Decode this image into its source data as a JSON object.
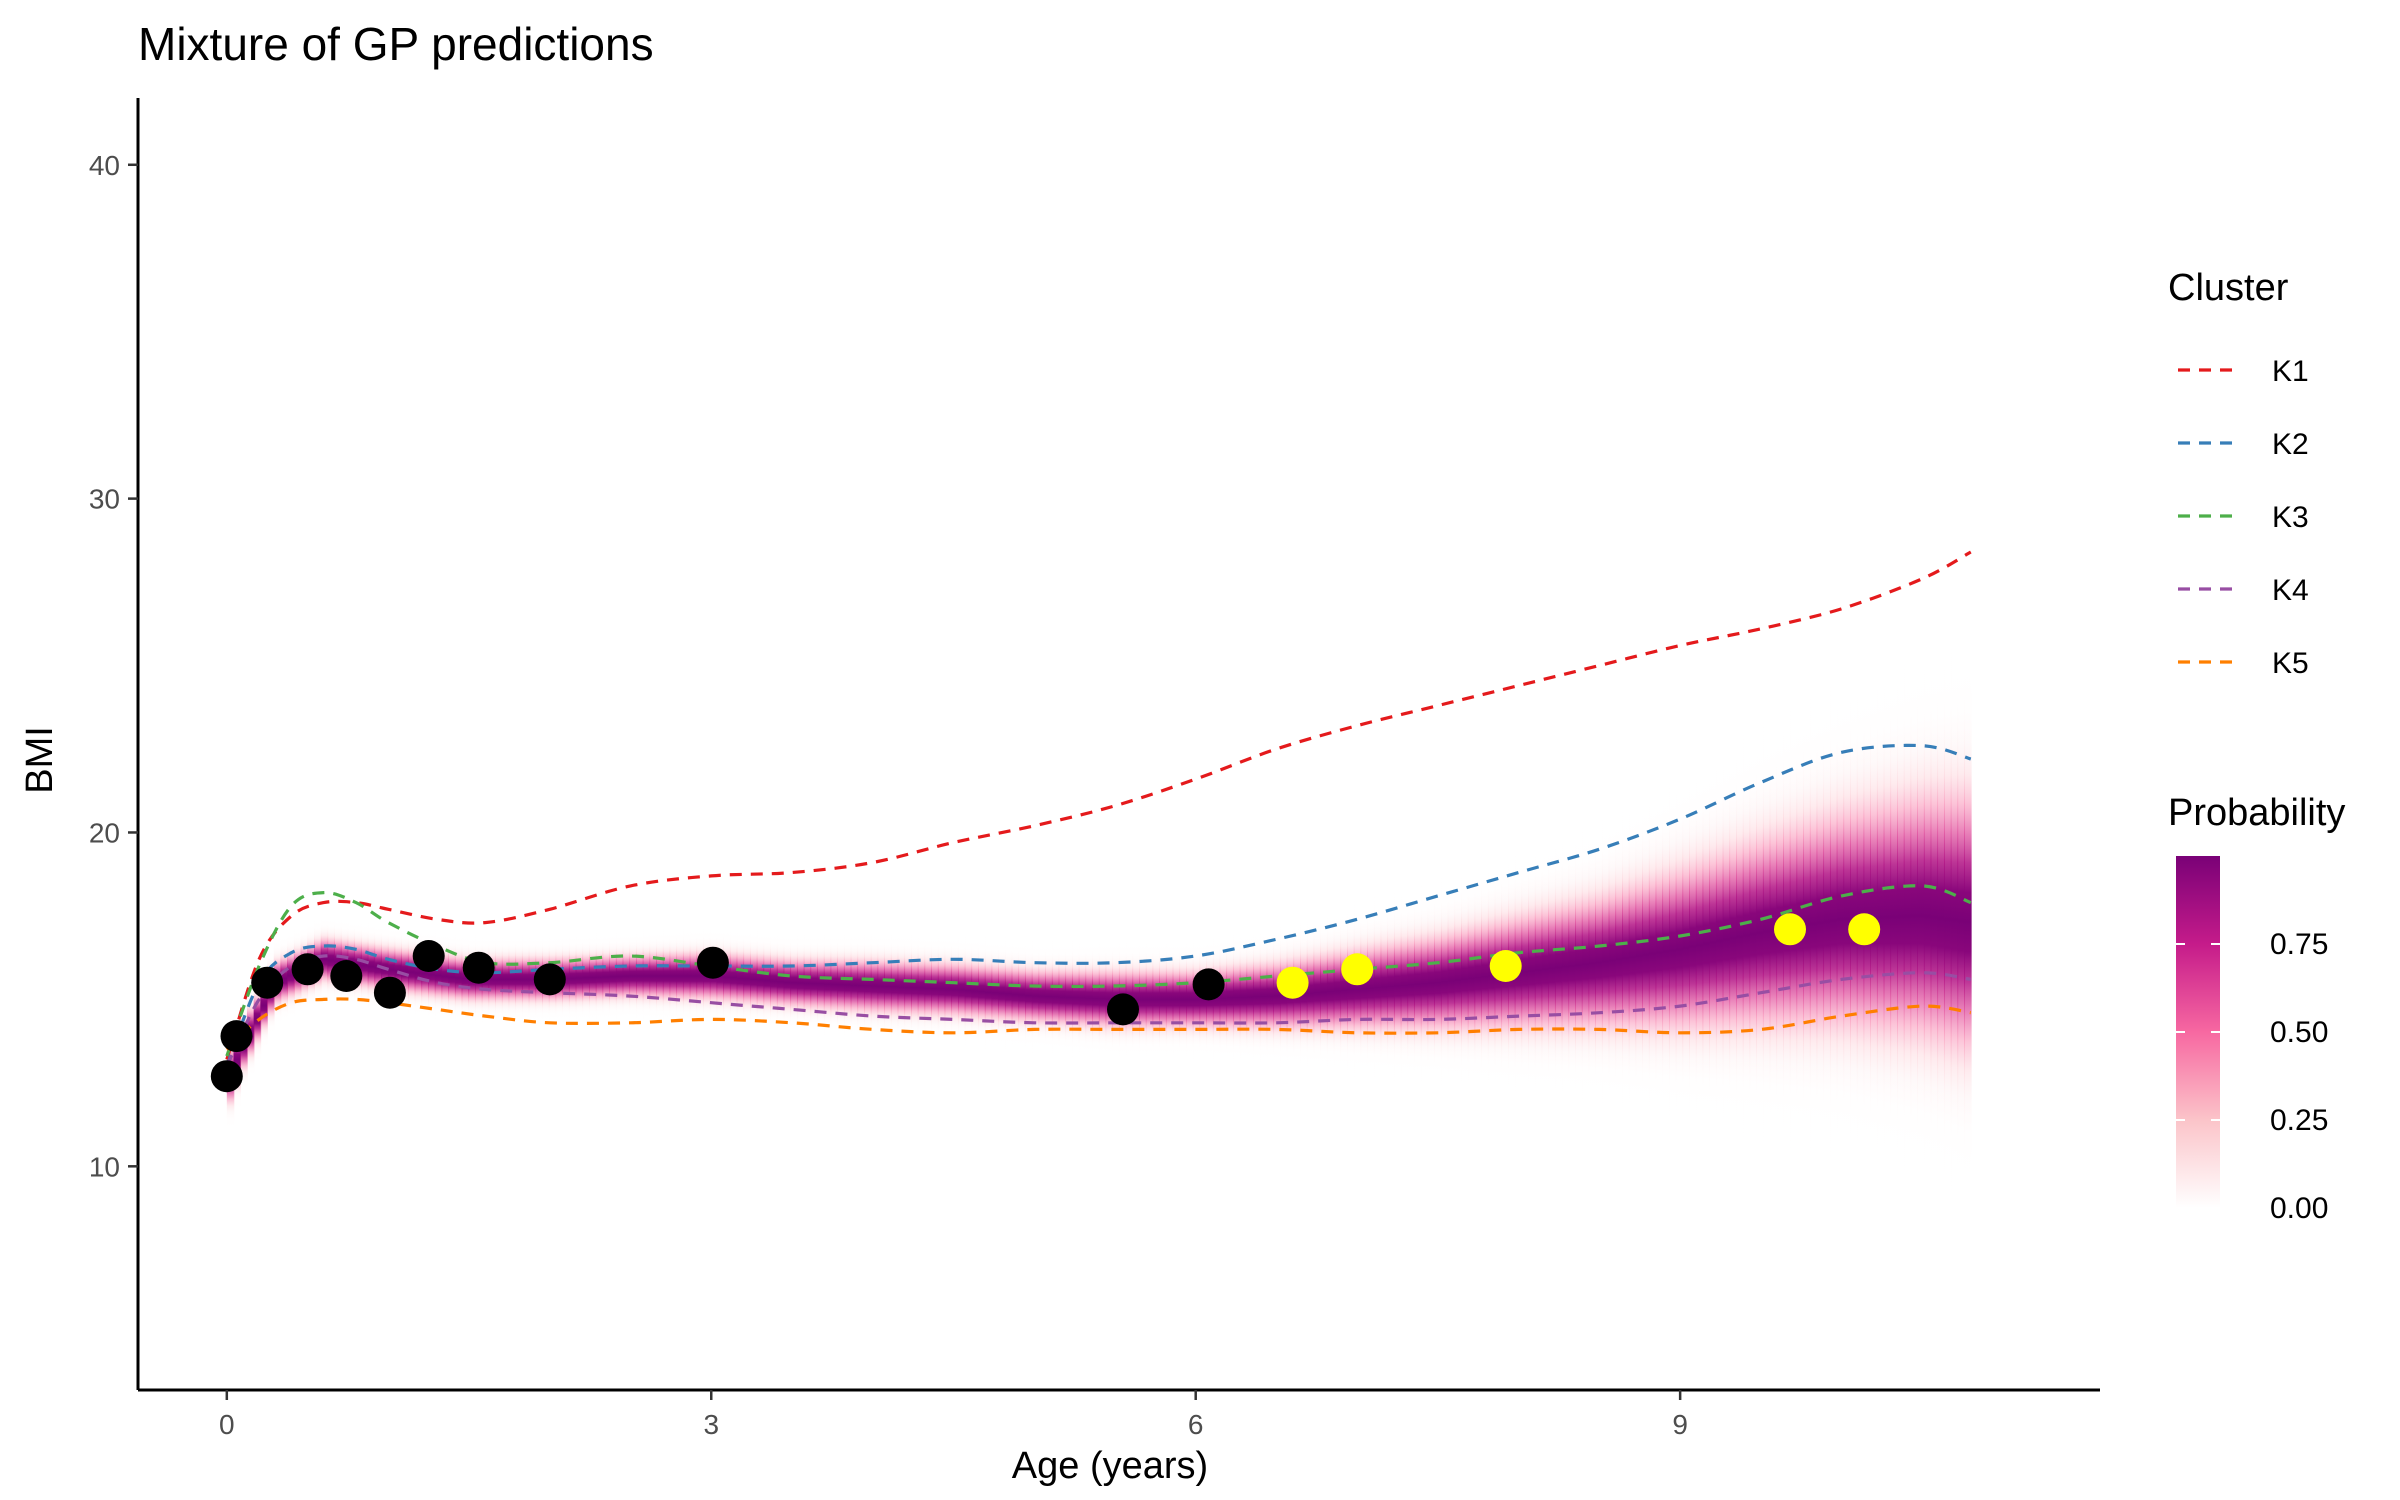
{
  "chart_data": {
    "type": "line",
    "title": "Mixture of GP predictions",
    "xlabel": "Age (years)",
    "ylabel": "BMI",
    "xlim": [
      -0.55,
      11.6
    ],
    "ylim": [
      3.3,
      42
    ],
    "x_ticks": [
      0,
      3,
      6,
      9
    ],
    "y_ticks": [
      10,
      20,
      30,
      40
    ],
    "grid": false,
    "legend_cluster": {
      "title": "Cluster",
      "position": "right",
      "line_style": "dashed"
    },
    "legend_probability": {
      "title": "Probability",
      "ticks": [
        "0.00",
        "0.25",
        "0.50",
        "0.75"
      ],
      "tick_values": [
        0,
        0.25,
        0.5,
        0.75
      ],
      "max": 1.0,
      "colors": [
        "#ffffff",
        "#fbc4c9",
        "#f768a1",
        "#c51b8a",
        "#7a0177"
      ]
    },
    "series": [
      {
        "name": "K1",
        "color": "#e41a1c",
        "x": [
          0,
          0.2,
          0.4,
          0.6,
          0.8,
          1.0,
          1.3,
          1.6,
          2.0,
          2.5,
          3.0,
          3.5,
          4.0,
          4.5,
          5.0,
          5.5,
          6.0,
          6.5,
          7.0,
          7.5,
          8.0,
          8.5,
          9.0,
          9.5,
          10.0,
          10.5,
          10.8
        ],
        "y": [
          13.2,
          16.2,
          17.5,
          17.9,
          17.9,
          17.7,
          17.4,
          17.3,
          17.7,
          18.4,
          18.7,
          18.8,
          19.1,
          19.7,
          20.2,
          20.8,
          21.6,
          22.5,
          23.2,
          23.8,
          24.4,
          25.0,
          25.6,
          26.1,
          26.7,
          27.6,
          28.4
        ]
      },
      {
        "name": "K2",
        "color": "#377eb8",
        "x": [
          0,
          0.2,
          0.4,
          0.6,
          0.8,
          1.0,
          1.3,
          1.6,
          2.0,
          2.5,
          3.0,
          3.5,
          4.0,
          4.5,
          5.0,
          5.5,
          6.0,
          6.5,
          7.0,
          7.5,
          8.0,
          8.5,
          9.0,
          9.5,
          10.0,
          10.5,
          10.8
        ],
        "y": [
          13.0,
          15.5,
          16.4,
          16.6,
          16.5,
          16.2,
          15.9,
          15.8,
          15.9,
          16.0,
          16.0,
          16.0,
          16.1,
          16.2,
          16.1,
          16.1,
          16.3,
          16.8,
          17.4,
          18.1,
          18.8,
          19.5,
          20.4,
          21.5,
          22.4,
          22.6,
          22.2
        ]
      },
      {
        "name": "K3",
        "color": "#4daf4a",
        "x": [
          0,
          0.2,
          0.4,
          0.6,
          0.8,
          1.0,
          1.3,
          1.6,
          2.0,
          2.5,
          3.0,
          3.5,
          4.0,
          4.5,
          5.0,
          5.5,
          6.0,
          6.5,
          7.0,
          7.5,
          8.0,
          8.5,
          9.0,
          9.5,
          10.0,
          10.5,
          10.8
        ],
        "y": [
          13.3,
          16.0,
          17.8,
          18.2,
          17.9,
          17.3,
          16.6,
          16.1,
          16.1,
          16.3,
          16.0,
          15.7,
          15.6,
          15.5,
          15.4,
          15.4,
          15.5,
          15.7,
          15.9,
          16.1,
          16.4,
          16.6,
          16.9,
          17.4,
          18.1,
          18.4,
          17.9
        ]
      },
      {
        "name": "K4",
        "color": "#984ea3",
        "x": [
          0,
          0.2,
          0.4,
          0.6,
          0.8,
          1.0,
          1.3,
          1.6,
          2.0,
          2.5,
          3.0,
          3.5,
          4.0,
          4.5,
          5.0,
          5.5,
          6.0,
          6.5,
          7.0,
          7.5,
          8.0,
          8.5,
          9.0,
          9.5,
          10.0,
          10.5,
          10.8
        ],
        "y": [
          13.0,
          15.0,
          16.0,
          16.3,
          16.2,
          15.9,
          15.5,
          15.3,
          15.2,
          15.1,
          14.9,
          14.7,
          14.5,
          14.4,
          14.3,
          14.3,
          14.3,
          14.3,
          14.4,
          14.4,
          14.5,
          14.6,
          14.8,
          15.2,
          15.6,
          15.8,
          15.6
        ]
      },
      {
        "name": "K5",
        "color": "#ff7f00",
        "x": [
          0,
          0.2,
          0.4,
          0.6,
          0.8,
          1.0,
          1.3,
          1.6,
          2.0,
          2.5,
          3.0,
          3.5,
          4.0,
          4.5,
          5.0,
          5.5,
          6.0,
          6.5,
          7.0,
          7.5,
          8.0,
          8.5,
          9.0,
          9.5,
          10.0,
          10.5,
          10.8
        ],
        "y": [
          13.5,
          14.4,
          14.9,
          15.0,
          15.0,
          14.9,
          14.7,
          14.5,
          14.3,
          14.3,
          14.4,
          14.3,
          14.1,
          14.0,
          14.1,
          14.1,
          14.1,
          14.1,
          14.0,
          14.0,
          14.1,
          14.1,
          14.0,
          14.1,
          14.5,
          14.8,
          14.6
        ]
      }
    ],
    "observed_points": {
      "color": "#000000",
      "x": [
        0.0,
        0.06,
        0.25,
        0.5,
        0.74,
        1.01,
        1.25,
        1.56,
        2.0,
        3.01,
        5.55,
        6.08
      ],
      "y": [
        12.7,
        13.9,
        15.5,
        15.9,
        15.7,
        15.2,
        16.3,
        15.95,
        15.6,
        16.1,
        14.7,
        15.45
      ]
    },
    "predicted_points": {
      "color": "#ffff00",
      "x": [
        6.6,
        7.0,
        7.92,
        9.68,
        10.14
      ],
      "y": [
        15.5,
        15.9,
        16.0,
        17.1,
        17.1
      ]
    },
    "probability_band": {
      "x": [
        0,
        0.1,
        0.3,
        0.6,
        1.0,
        1.5,
        2.0,
        2.5,
        3.0,
        3.5,
        4.0,
        4.5,
        5.0,
        5.5,
        6.0,
        6.5,
        7.0,
        7.5,
        8.0,
        8.5,
        9.0,
        9.5,
        10.0,
        10.5,
        10.8
      ],
      "mean": [
        12.5,
        13.6,
        15.5,
        16.2,
        15.9,
        15.6,
        15.6,
        15.7,
        15.7,
        15.5,
        15.4,
        15.3,
        15.1,
        15.0,
        15.0,
        15.1,
        15.3,
        15.5,
        15.8,
        16.1,
        16.5,
        17.0,
        17.4,
        17.5,
        17.3
      ],
      "sd": [
        0.6,
        0.5,
        0.45,
        0.45,
        0.45,
        0.45,
        0.45,
        0.45,
        0.5,
        0.5,
        0.55,
        0.55,
        0.55,
        0.6,
        0.6,
        0.7,
        0.85,
        1.0,
        1.2,
        1.4,
        1.7,
        2.0,
        2.3,
        2.6,
        2.8
      ]
    }
  }
}
